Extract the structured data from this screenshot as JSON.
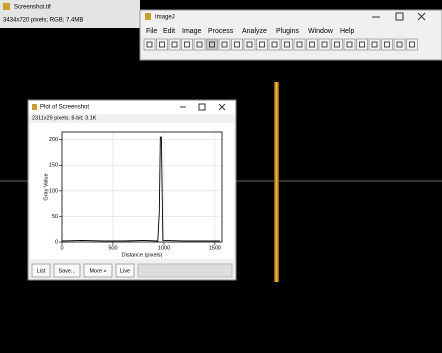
{
  "image_window": {
    "title": "Screenshot.tif",
    "info": "3434x720 pixels; RGB; 7.4MB"
  },
  "imagej": {
    "title": "ImageJ",
    "menu": [
      "File",
      "Edit",
      "Image",
      "Process",
      "Analyze",
      "Plugins",
      "Window",
      "Help"
    ]
  },
  "plot_window": {
    "title": "Plot of Screenshot",
    "info": "2311x29 pixels; 8-bit; 3.1K",
    "buttons": [
      "List",
      "Save...",
      "More »",
      "Live"
    ]
  },
  "chart_data": {
    "type": "line",
    "x_label": "Distance (pixels)",
    "y_label": "Gray Value",
    "xlim": [
      0,
      1570
    ],
    "ylim": [
      0,
      215
    ],
    "xticks": [
      0,
      500,
      1000,
      1500
    ],
    "yticks": [
      0,
      50,
      100,
      150,
      200
    ],
    "series": [
      {
        "color": "#000000",
        "x": [
          0,
          200,
          400,
          600,
          800,
          940,
          955,
          965,
          975,
          990,
          1200,
          1400,
          1550
        ],
        "values": [
          2,
          3,
          2,
          2,
          3,
          2,
          60,
          205,
          205,
          3,
          2,
          2,
          2
        ]
      }
    ]
  }
}
